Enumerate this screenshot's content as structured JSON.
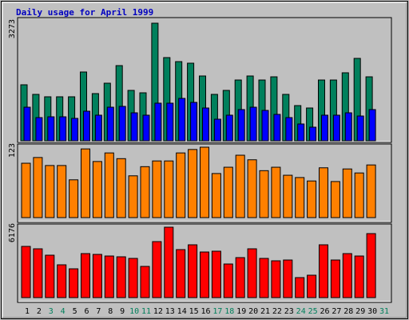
{
  "chart_data": [
    {
      "type": "bar",
      "title": "Daily usage for April 1999",
      "ylim": [
        0,
        3273
      ],
      "yticks": [
        3273
      ],
      "series": [
        {
          "color": "#00805c",
          "values": [
            1559,
            1292,
            1225,
            1225,
            1225,
            1915,
            1314,
            1603,
            2093,
            1403,
            1336,
            3273,
            2316,
            2204,
            2160,
            1804,
            1292,
            1403,
            1692,
            1804,
            1692,
            1781,
            1292,
            980,
            913,
            1692,
            1692,
            1893,
            2294,
            1781,
            null
          ]
        },
        {
          "color": "#0000ff",
          "values": [
            935,
            646,
            668,
            668,
            624,
            824,
            713,
            935,
            958,
            779,
            713,
            1047,
            1047,
            1180,
            1069,
            913,
            601,
            713,
            869,
            935,
            846,
            735,
            646,
            468,
            379,
            713,
            713,
            779,
            690,
            869,
            null
          ]
        }
      ]
    },
    {
      "type": "bar",
      "ylim": [
        0,
        123
      ],
      "yticks": [
        123
      ],
      "series": [
        {
          "color": "#ff8000",
          "values": [
            95,
            105,
            91,
            91,
            66,
            120,
            98,
            113,
            103,
            73,
            89,
            99,
            99,
            113,
            119,
            123,
            77,
            88,
            109,
            101,
            82,
            88,
            74,
            70,
            64,
            87,
            63,
            85,
            78,
            92,
            null
          ]
        }
      ]
    },
    {
      "type": "bar",
      "ylim": [
        0,
        6176
      ],
      "yticks": [
        6176
      ],
      "categories": [
        "1",
        "2",
        "3",
        "4",
        "5",
        "6",
        "7",
        "8",
        "9",
        "10",
        "11",
        "12",
        "13",
        "14",
        "15",
        "16",
        "17",
        "18",
        "19",
        "20",
        "21",
        "22",
        "23",
        "24",
        "25",
        "26",
        "27",
        "28",
        "29",
        "30",
        "31"
      ],
      "category_colors": [
        "#000000",
        "#000000",
        "#00805c",
        "#00805c",
        "#000000",
        "#000000",
        "#000000",
        "#000000",
        "#000000",
        "#00805c",
        "#00805c",
        "#000000",
        "#000000",
        "#000000",
        "#000000",
        "#000000",
        "#00805c",
        "#00805c",
        "#000000",
        "#000000",
        "#000000",
        "#000000",
        "#000000",
        "#00805c",
        "#00805c",
        "#000000",
        "#000000",
        "#000000",
        "#000000",
        "#000000",
        "#00805c"
      ],
      "series": [
        {
          "color": "#ff0000",
          "values": [
            4492,
            4281,
            3720,
            2877,
            2526,
            3860,
            3790,
            3649,
            3579,
            3439,
            2737,
            4913,
            6176,
            4211,
            4632,
            4000,
            4070,
            2948,
            3509,
            4281,
            3439,
            3228,
            3298,
            1755,
            1965,
            4632,
            3298,
            3860,
            3649,
            5614,
            null
          ]
        }
      ]
    }
  ]
}
